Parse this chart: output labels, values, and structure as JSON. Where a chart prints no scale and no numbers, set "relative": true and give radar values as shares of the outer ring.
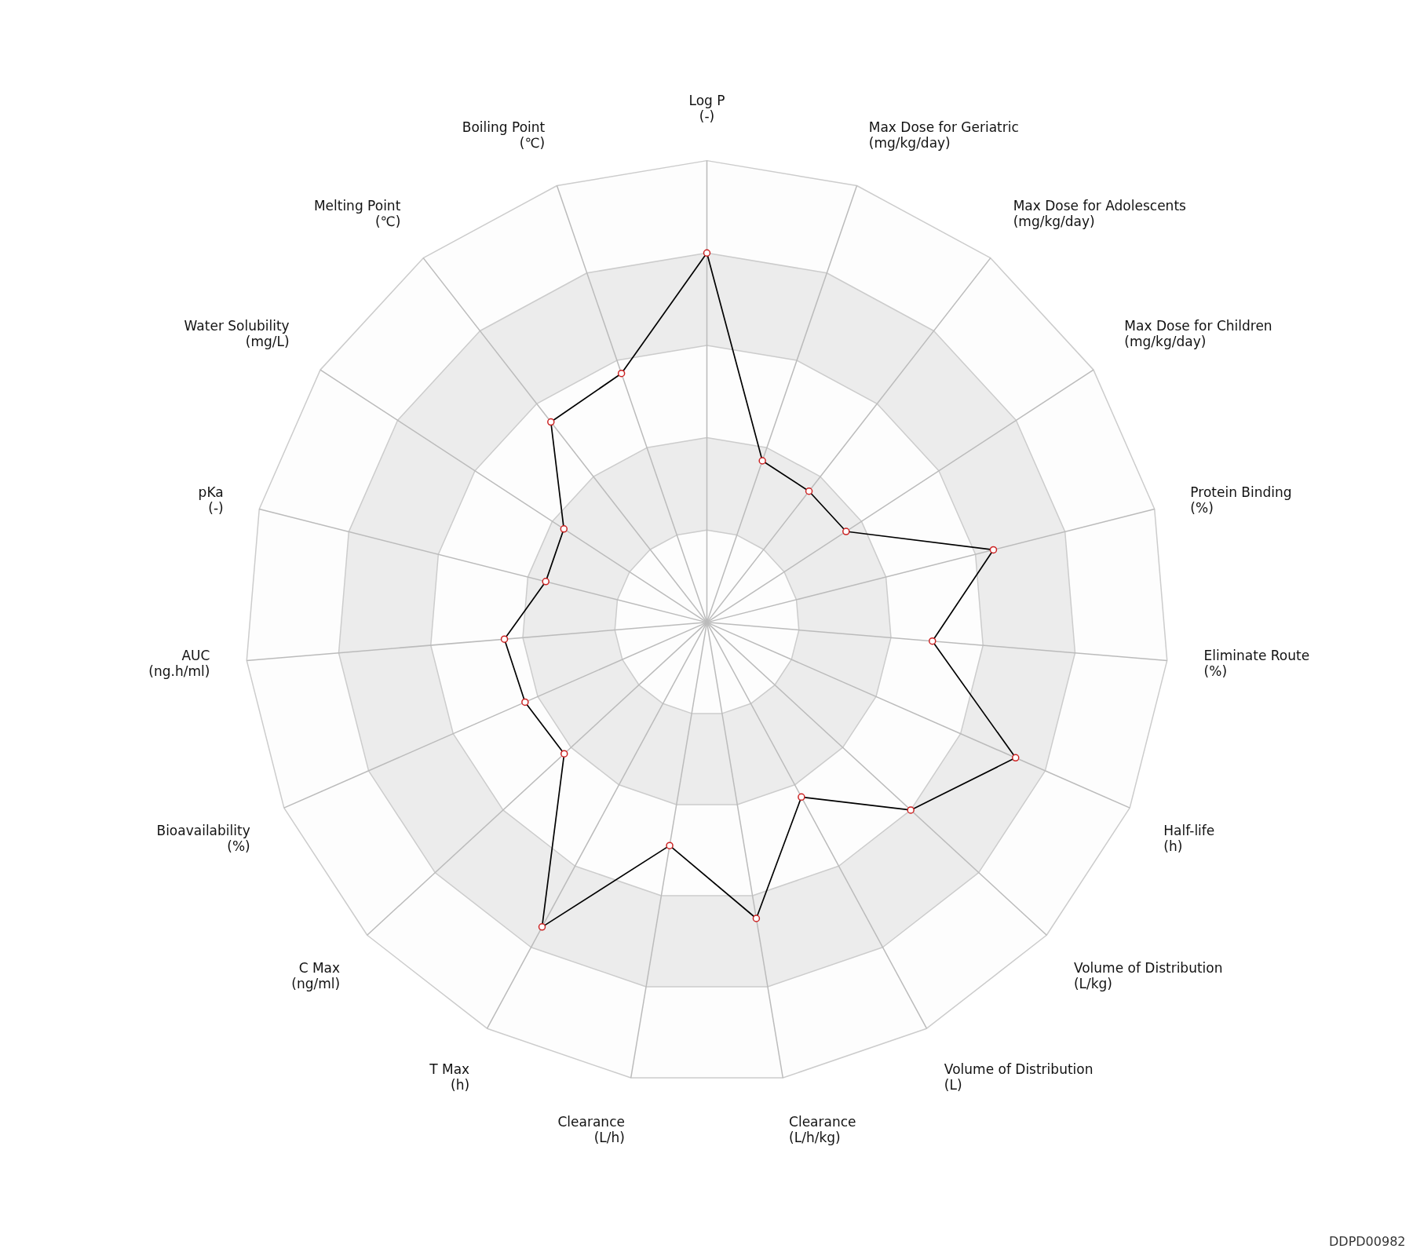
{
  "chart_data": {
    "type": "radar",
    "relative": true,
    "marker": "circle",
    "grid": true,
    "categories": [
      "Log P\n(-)",
      "Max Dose for Geriatric\n(mg/kg/day)",
      "Max Dose for Adolescents\n(mg/kg/day)",
      "Max Dose for Children\n(mg/kg/day)",
      "Protein Binding\n(%)",
      "Eliminate Route\n(%)",
      "Half-life\n(h)",
      "Volume of Distribution\n(L/kg)",
      "Volume of Distribution\n(L)",
      "Clearance\n(L/h/kg)",
      "Clearance\n(L/h)",
      "T Max\n(h)",
      "C Max\n(ng/ml)",
      "Bioavailability\n(%)",
      "AUC\n(ng.h/ml)",
      "pKa\n(-)",
      "Water Solubility\n(mg/L)",
      "Melting Point\n(℃)",
      "Boiling Point\n(℃)"
    ],
    "series": [
      {
        "color": "#000000",
        "values": [
          0.8,
          0.37,
          0.36,
          0.36,
          0.64,
          0.49,
          0.73,
          0.6,
          0.43,
          0.65,
          0.49,
          0.75,
          0.42,
          0.43,
          0.44,
          0.36,
          0.37,
          0.55,
          0.57
        ]
      }
    ],
    "annotations": [
      "DDPD00982"
    ]
  }
}
